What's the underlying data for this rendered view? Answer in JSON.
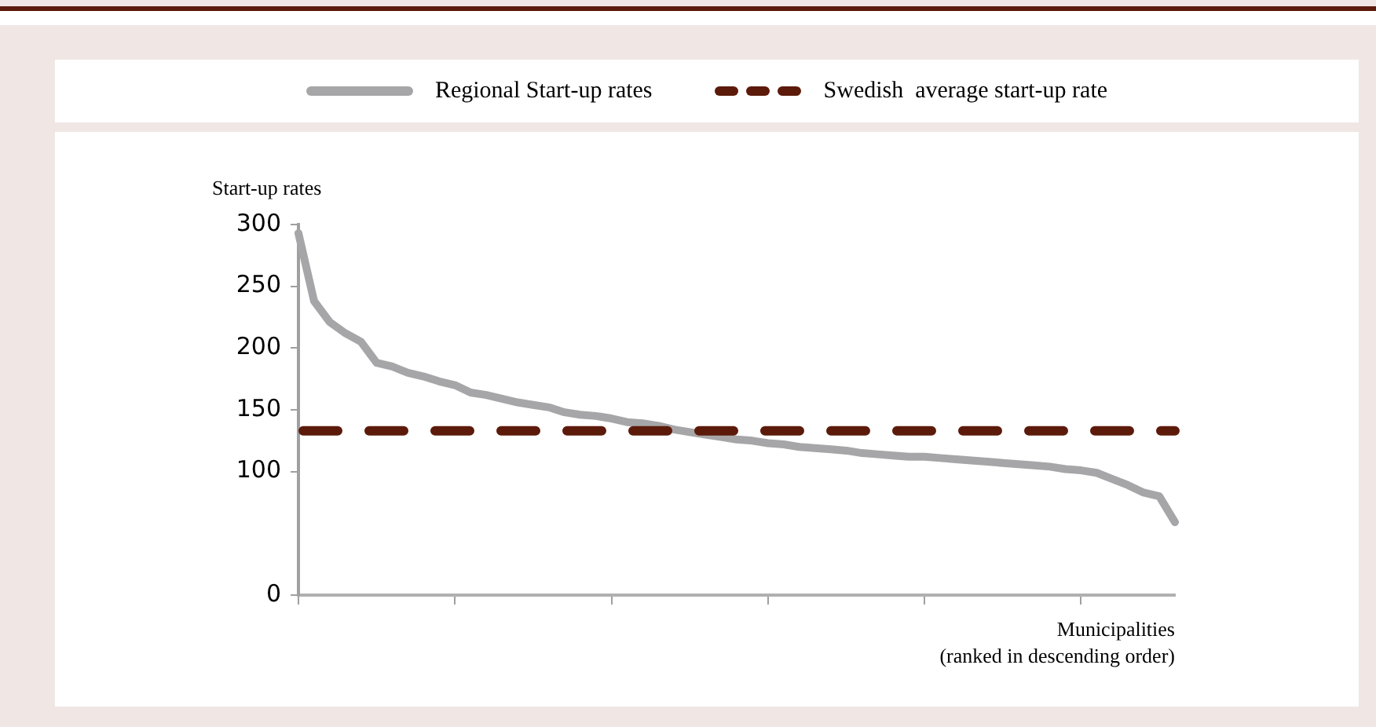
{
  "chart_data": {
    "type": "line",
    "ylabel": "Start-up rates",
    "xlabel": "Municipalities\n(ranked in descending order)",
    "categories": [
      null,
      null,
      null,
      null,
      null,
      null,
      null,
      null,
      null,
      null,
      null,
      null,
      null,
      null,
      null,
      null,
      null,
      null,
      null,
      null,
      null,
      null,
      null,
      null,
      null,
      null,
      null,
      null,
      null,
      null,
      null,
      null,
      null,
      null,
      null,
      null,
      null,
      null,
      null,
      null,
      null,
      null,
      null,
      null,
      null,
      null,
      null,
      null,
      null,
      null,
      null,
      null,
      null,
      null,
      null,
      null,
      null
    ],
    "series": [
      {
        "name": "Regional Start-up rates",
        "color": "#a6a6a8",
        "values": [
          293,
          238,
          221,
          212,
          205,
          188,
          185,
          180,
          177,
          173,
          170,
          164,
          162,
          159,
          156,
          154,
          152,
          148,
          146,
          145,
          143,
          140,
          139,
          137,
          134,
          132,
          130,
          128,
          126,
          125,
          123,
          122,
          120,
          119,
          118,
          117,
          115,
          114,
          113,
          112,
          112,
          111,
          110,
          109,
          108,
          107,
          106,
          105,
          104,
          102,
          101,
          99,
          94,
          89,
          83,
          80,
          59
        ]
      }
    ],
    "ref_lines": [
      {
        "axis": "y",
        "value": 133,
        "label": "Swedish  average start-up rate",
        "color": "#5c1a0a",
        "line_style": "dashed"
      }
    ],
    "ylim": [
      0,
      300
    ],
    "yticks": [
      0,
      100,
      150,
      200,
      250,
      300
    ],
    "marker": "none",
    "line_style": "solid",
    "grid": false,
    "legend": "top"
  }
}
